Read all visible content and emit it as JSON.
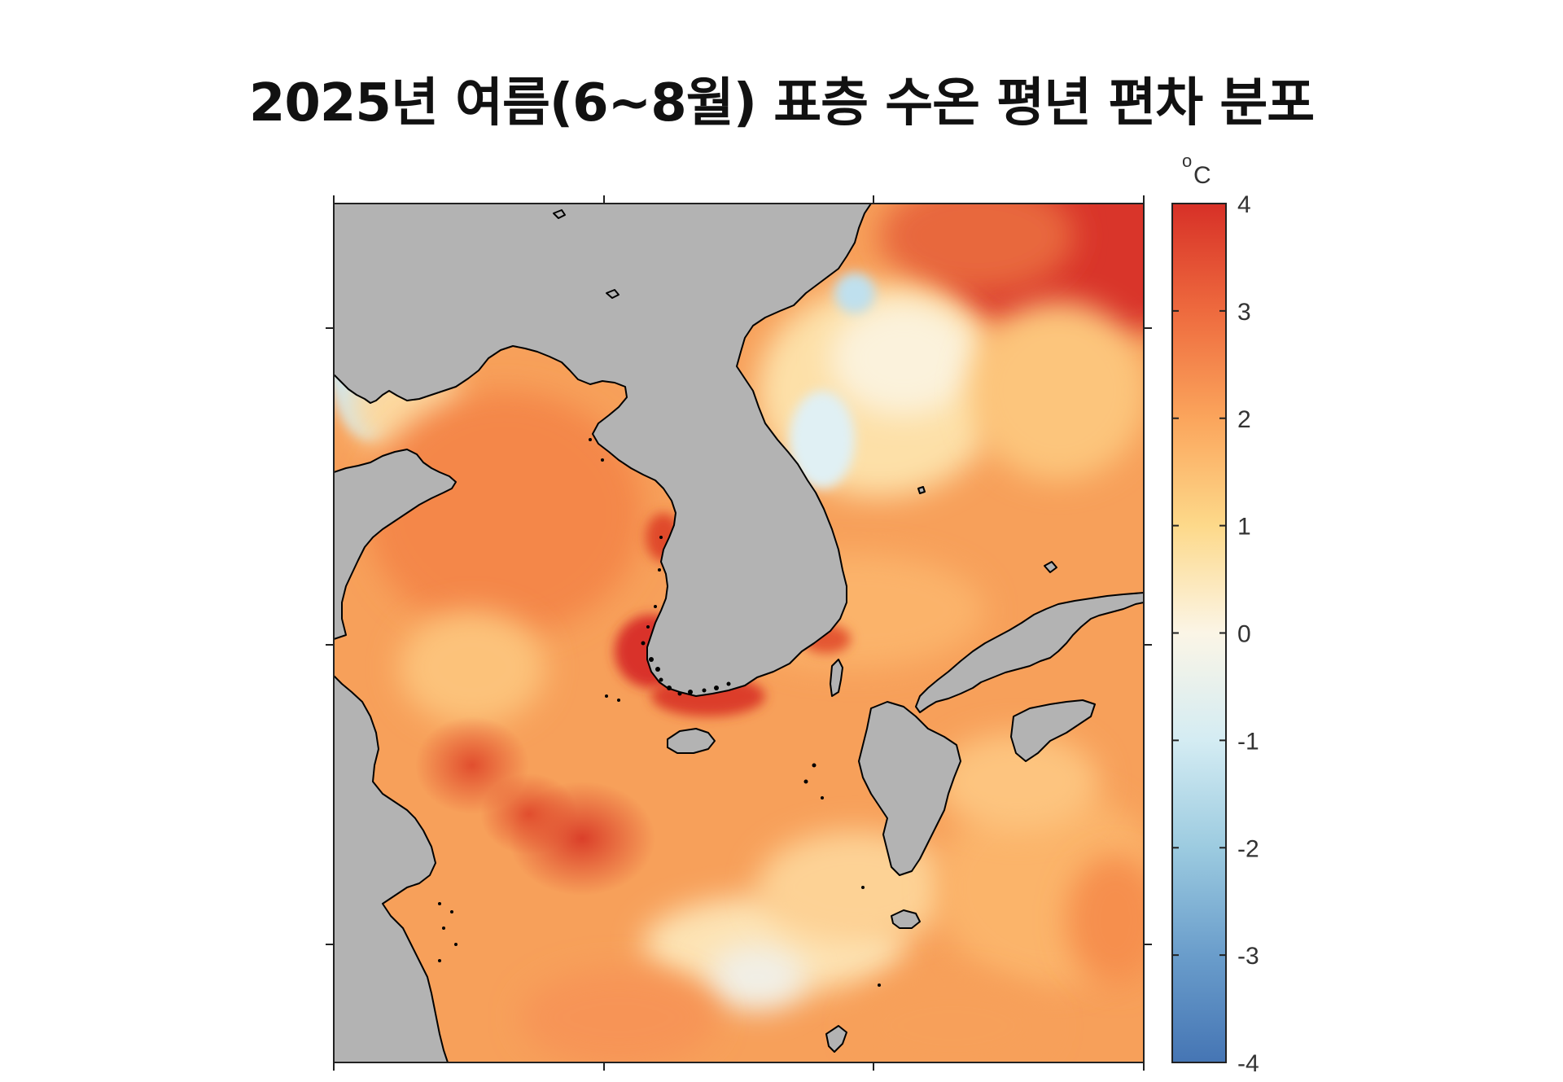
{
  "title": "2025년 여름(6~8월) 표층 수온 평년 편차 분포",
  "colorbar": {
    "unit": "°C",
    "unit_main": "C",
    "unit_sup": "o",
    "min": -4,
    "max": 4,
    "ticks": [
      "4",
      "3",
      "2",
      "1",
      "0",
      "-1",
      "-2",
      "-3",
      "-4"
    ],
    "tick_values": [
      4,
      3,
      2,
      1,
      0,
      -1,
      -2,
      -3,
      -4
    ],
    "colors": [
      "#4575b4",
      "#74add1",
      "#abd9e9",
      "#e0f3f8",
      "#fdf6e3",
      "#fee090",
      "#fdae61",
      "#f46d43",
      "#d73027"
    ]
  },
  "map": {
    "land_color": "#b3b3b3",
    "coast_color": "#000000"
  }
}
